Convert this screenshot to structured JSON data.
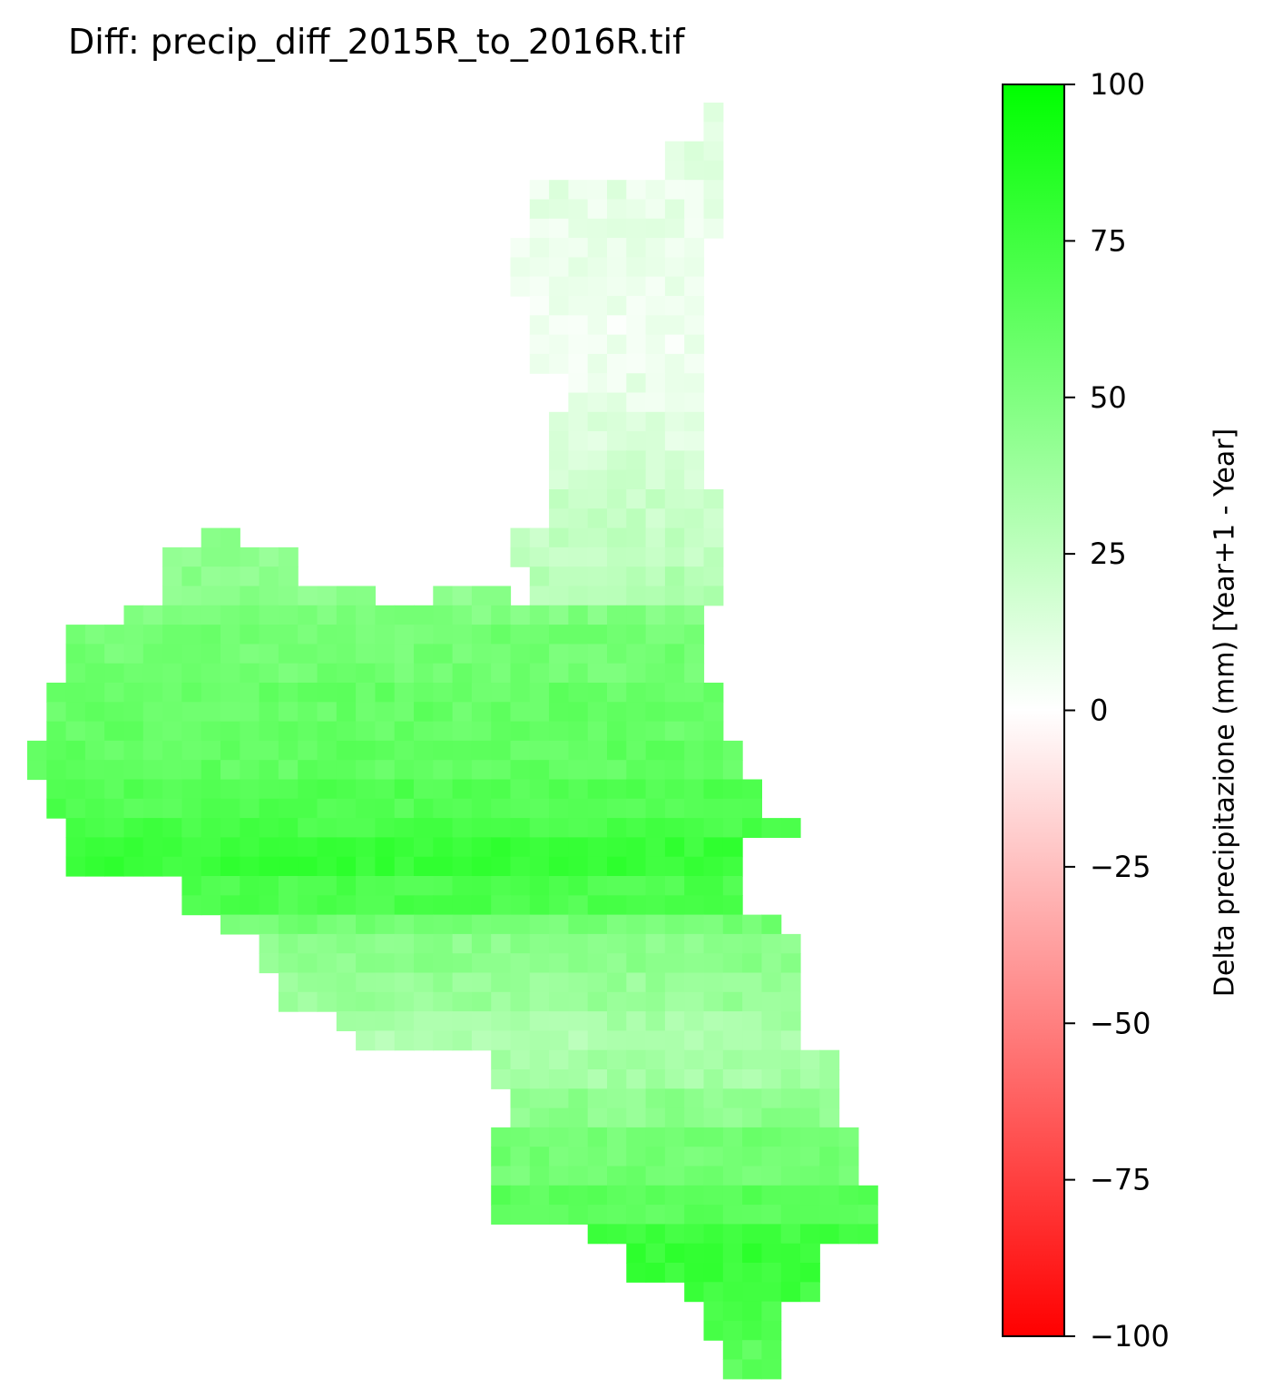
{
  "chart_data": {
    "type": "heatmap",
    "title": "Diff: precip_diff_2015R_to_2016R.tif",
    "colorbar": {
      "label": "Delta precipitazione (mm) [Year+1 - Year]",
      "range": [
        -100,
        100
      ],
      "ticks": [
        100,
        75,
        50,
        25,
        0,
        -25,
        -50,
        -75,
        -100
      ],
      "tick_labels": [
        "100",
        "75",
        "50",
        "25",
        "0",
        "−25",
        "−50",
        "−75",
        "−100"
      ],
      "colors": {
        "negative": "#ff0000",
        "zero": "#ffffff",
        "positive": "#00ff00"
      }
    },
    "grid": {
      "nrows": 67,
      "ncols": 45,
      "row_bands": [
        {
          "rows": [
            0,
            3
          ],
          "cols": [
            35,
            36
          ],
          "value": 12
        },
        {
          "rows": [
            2,
            5
          ],
          "cols": [
            33,
            36
          ],
          "value": 10
        },
        {
          "rows": [
            4,
            7
          ],
          "cols": [
            26,
            36
          ],
          "value": 9
        },
        {
          "rows": [
            7,
            10
          ],
          "cols": [
            25,
            35
          ],
          "value": 8
        },
        {
          "rows": [
            10,
            14
          ],
          "cols": [
            26,
            35
          ],
          "value": 6
        },
        {
          "rows": [
            14,
            16
          ],
          "cols": [
            28,
            35
          ],
          "value": 8
        },
        {
          "rows": [
            16,
            18
          ],
          "cols": [
            27,
            35
          ],
          "value": 12
        },
        {
          "rows": [
            18,
            20
          ],
          "cols": [
            27,
            35
          ],
          "value": 18
        },
        {
          "rows": [
            20,
            22
          ],
          "cols": [
            27,
            36
          ],
          "value": 22
        },
        {
          "rows": [
            22,
            24
          ],
          "cols": [
            25,
            36
          ],
          "value": 24
        },
        {
          "rows": [
            24,
            26
          ],
          "cols": [
            26,
            36
          ],
          "value": 30
        },
        {
          "rows": [
            22,
            23
          ],
          "cols": [
            9,
            11
          ],
          "value": 45
        },
        {
          "rows": [
            23,
            25
          ],
          "cols": [
            7,
            14
          ],
          "value": 45
        },
        {
          "rows": [
            25,
            26
          ],
          "cols": [
            7,
            18
          ],
          "value": 45
        },
        {
          "rows": [
            25,
            26
          ],
          "cols": [
            21,
            25
          ],
          "value": 45
        },
        {
          "rows": [
            26,
            27
          ],
          "cols": [
            5,
            35
          ],
          "value": 50
        },
        {
          "rows": [
            27,
            30
          ],
          "cols": [
            2,
            35
          ],
          "value": 55
        },
        {
          "rows": [
            30,
            33
          ],
          "cols": [
            1,
            36
          ],
          "value": 60
        },
        {
          "rows": [
            33,
            35
          ],
          "cols": [
            0,
            37
          ],
          "value": 62
        },
        {
          "rows": [
            35,
            37
          ],
          "cols": [
            1,
            38
          ],
          "value": 68
        },
        {
          "rows": [
            37,
            38
          ],
          "cols": [
            2,
            40
          ],
          "value": 72
        },
        {
          "rows": [
            38,
            40
          ],
          "cols": [
            2,
            37
          ],
          "value": 78
        },
        {
          "rows": [
            40,
            42
          ],
          "cols": [
            8,
            37
          ],
          "value": 70
        },
        {
          "rows": [
            42,
            43
          ],
          "cols": [
            10,
            39
          ],
          "value": 55
        },
        {
          "rows": [
            43,
            45
          ],
          "cols": [
            12,
            40
          ],
          "value": 45
        },
        {
          "rows": [
            45,
            47
          ],
          "cols": [
            13,
            40
          ],
          "value": 40
        },
        {
          "rows": [
            47,
            48
          ],
          "cols": [
            16,
            40
          ],
          "value": 35
        },
        {
          "rows": [
            48,
            49
          ],
          "cols": [
            17,
            40
          ],
          "value": 30
        },
        {
          "rows": [
            49,
            51
          ],
          "cols": [
            24,
            42
          ],
          "value": 35
        },
        {
          "rows": [
            51,
            53
          ],
          "cols": [
            25,
            42
          ],
          "value": 45
        },
        {
          "rows": [
            53,
            56
          ],
          "cols": [
            24,
            43
          ],
          "value": 55
        },
        {
          "rows": [
            56,
            58
          ],
          "cols": [
            24,
            44
          ],
          "value": 65
        },
        {
          "rows": [
            58,
            59
          ],
          "cols": [
            29,
            44
          ],
          "value": 75
        },
        {
          "rows": [
            59,
            61
          ],
          "cols": [
            31,
            41
          ],
          "value": 78
        },
        {
          "rows": [
            61,
            62
          ],
          "cols": [
            34,
            41
          ],
          "value": 75
        },
        {
          "rows": [
            62,
            64
          ],
          "cols": [
            35,
            39
          ],
          "value": 70
        },
        {
          "rows": [
            64,
            66
          ],
          "cols": [
            36,
            39
          ],
          "value": 65
        }
      ]
    }
  }
}
